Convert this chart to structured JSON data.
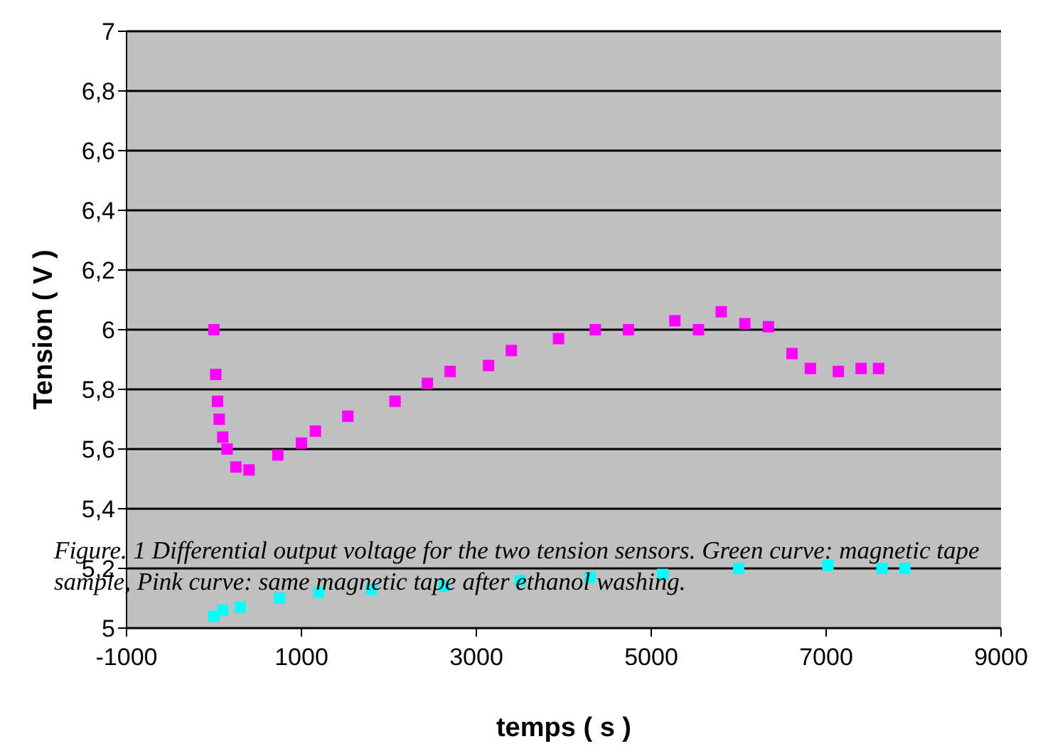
{
  "chart_data": {
    "type": "scatter",
    "xlabel": "temps ( s )",
    "ylabel": "Tension ( V )",
    "annotations": [
      "Figure. 1 Differential output voltage for the two tension sensors. Green curve: magnetic tape sample, Pink curve: same magnetic tape after ethanol washing."
    ],
    "xlim": [
      -1000,
      9000
    ],
    "xticks": [
      -1000,
      1000,
      3000,
      5000,
      7000,
      9000
    ],
    "ylim": [
      5,
      7
    ],
    "yticks": [
      5,
      {
        "value": 5.2,
        "label": "5,2"
      },
      {
        "value": 5.4,
        "label": "5,4"
      },
      {
        "value": 5.6,
        "label": "5,6"
      },
      {
        "value": 5.8,
        "label": "5,8"
      },
      6,
      {
        "value": 6.2,
        "label": "6,2"
      },
      {
        "value": 6.4,
        "label": "6,4"
      },
      {
        "value": 6.6,
        "label": "6,6"
      },
      {
        "value": 6.8,
        "label": "6,8"
      },
      7
    ],
    "grid": "y",
    "marker": "square",
    "series": [
      {
        "color": "#ff00ff",
        "x": [
          0,
          20,
          40,
          60,
          100,
          150,
          250,
          400,
          730,
          1000,
          1160,
          1530,
          2070,
          2440,
          2700,
          3140,
          3400,
          3940,
          4360,
          4740,
          5270,
          5540,
          5800,
          6070,
          6340,
          6610,
          6820,
          7140,
          7400,
          7600
        ],
        "values": [
          6.0,
          5.85,
          5.76,
          5.7,
          5.64,
          5.6,
          5.54,
          5.53,
          5.58,
          5.62,
          5.66,
          5.71,
          5.76,
          5.82,
          5.86,
          5.88,
          5.93,
          5.97,
          6.0,
          6.0,
          6.03,
          6.0,
          6.06,
          6.02,
          6.01,
          5.92,
          5.87,
          5.86,
          5.87,
          5.87
        ]
      },
      {
        "color": "#00ffff",
        "x": [
          0,
          100,
          300,
          750,
          1200,
          1800,
          2630,
          3500,
          4300,
          5130,
          6000,
          7020,
          7640,
          7900
        ],
        "values": [
          5.04,
          5.06,
          5.07,
          5.1,
          5.12,
          5.13,
          5.14,
          5.16,
          5.17,
          5.18,
          5.2,
          5.21,
          5.2,
          5.2
        ]
      }
    ]
  }
}
